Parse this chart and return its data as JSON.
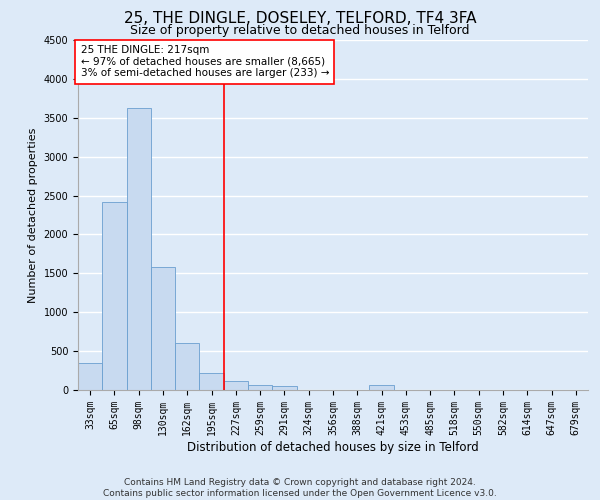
{
  "title": "25, THE DINGLE, DOSELEY, TELFORD, TF4 3FA",
  "subtitle": "Size of property relative to detached houses in Telford",
  "xlabel": "Distribution of detached houses by size in Telford",
  "ylabel": "Number of detached properties",
  "categories": [
    "33sqm",
    "65sqm",
    "98sqm",
    "130sqm",
    "162sqm",
    "195sqm",
    "227sqm",
    "259sqm",
    "291sqm",
    "324sqm",
    "356sqm",
    "388sqm",
    "421sqm",
    "453sqm",
    "485sqm",
    "518sqm",
    "550sqm",
    "582sqm",
    "614sqm",
    "647sqm",
    "679sqm"
  ],
  "values": [
    350,
    2420,
    3620,
    1580,
    600,
    220,
    110,
    70,
    50,
    0,
    0,
    0,
    60,
    0,
    0,
    0,
    0,
    0,
    0,
    0,
    0
  ],
  "bar_color": "#c8daf0",
  "bar_edge_color": "#6a9fd0",
  "vline_color": "red",
  "vline_x": 5.5,
  "ylim": [
    0,
    4500
  ],
  "yticks": [
    0,
    500,
    1000,
    1500,
    2000,
    2500,
    3000,
    3500,
    4000,
    4500
  ],
  "annotation_line1": "25 THE DINGLE: 217sqm",
  "annotation_line2": "← 97% of detached houses are smaller (8,665)",
  "annotation_line3": "3% of semi-detached houses are larger (233) →",
  "annotation_box_color": "white",
  "annotation_box_edge_color": "red",
  "footer_line1": "Contains HM Land Registry data © Crown copyright and database right 2024.",
  "footer_line2": "Contains public sector information licensed under the Open Government Licence v3.0.",
  "background_color": "#ddeaf8",
  "plot_bg_color": "#ddeaf8",
  "grid_color": "white",
  "title_fontsize": 11,
  "subtitle_fontsize": 9,
  "tick_fontsize": 7,
  "ylabel_fontsize": 8,
  "xlabel_fontsize": 8.5,
  "annotation_fontsize": 7.5,
  "footer_fontsize": 6.5
}
